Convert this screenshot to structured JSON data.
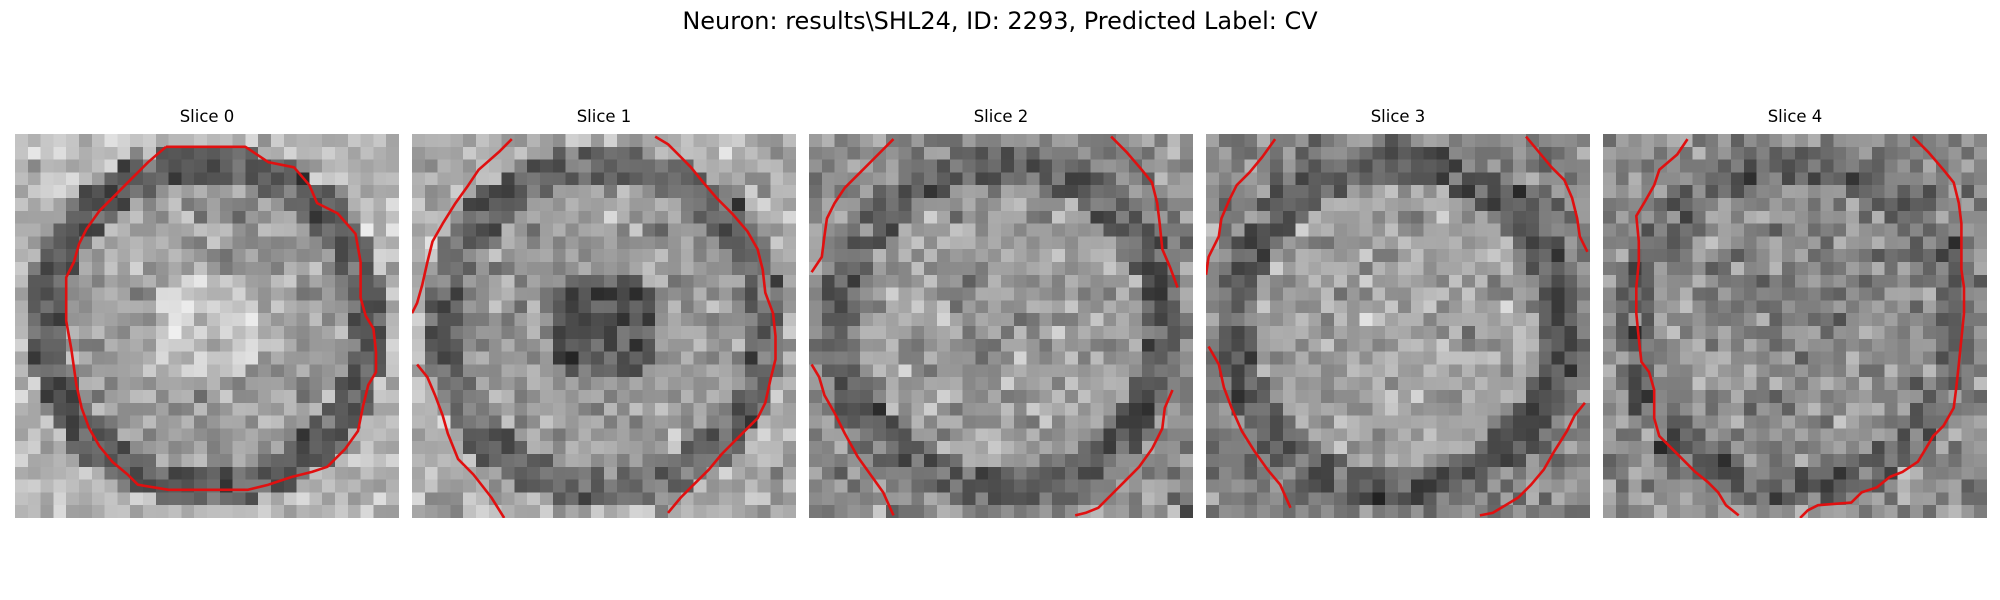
{
  "figure": {
    "title": "Neuron: results\\SHL24, ID: 2293, Predicted Label: CV",
    "contour_color": "#e01010"
  },
  "slices": [
    {
      "label": "Slice 0"
    },
    {
      "label": "Slice 1"
    },
    {
      "label": "Slice 2"
    },
    {
      "label": "Slice 3"
    },
    {
      "label": "Slice 4"
    }
  ]
}
